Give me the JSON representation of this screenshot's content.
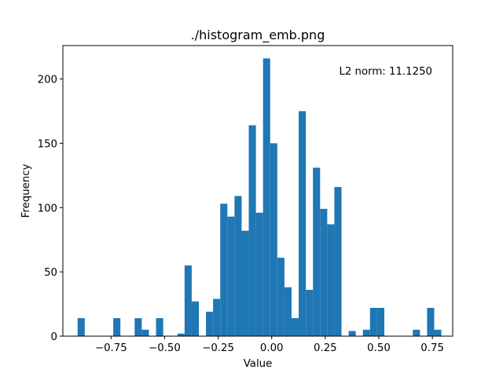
{
  "chart_data": {
    "type": "histogram",
    "title": "./histogram_emb.png",
    "xlabel": "Value",
    "ylabel": "Frequency",
    "annotation": "L2 norm: 11.1250",
    "bar_color": "#1f77b4",
    "xlim": [
      -0.975,
      0.845
    ],
    "ylim": [
      0,
      226
    ],
    "xticks": [
      -0.75,
      -0.5,
      -0.25,
      0.0,
      0.25,
      0.5,
      0.75
    ],
    "xtick_labels": [
      "−0.75",
      "−0.50",
      "−0.25",
      "0.00",
      "0.25",
      "0.50",
      "0.75"
    ],
    "yticks": [
      0,
      50,
      100,
      150,
      200
    ],
    "ytick_labels": [
      "0",
      "50",
      "100",
      "150",
      "200"
    ],
    "bin_edges_start": -0.9063,
    "bin_width": 0.0333,
    "counts": [
      14,
      0,
      0,
      0,
      0,
      14,
      0,
      0,
      14,
      5,
      0,
      14,
      0,
      0,
      2,
      55,
      27,
      0,
      19,
      29,
      103,
      93,
      109,
      82,
      164,
      96,
      216,
      150,
      61,
      38,
      14,
      175,
      36,
      131,
      99,
      87,
      116,
      0,
      4,
      0,
      5,
      22,
      22,
      0,
      0,
      0,
      0,
      5,
      0,
      22,
      5
    ]
  }
}
